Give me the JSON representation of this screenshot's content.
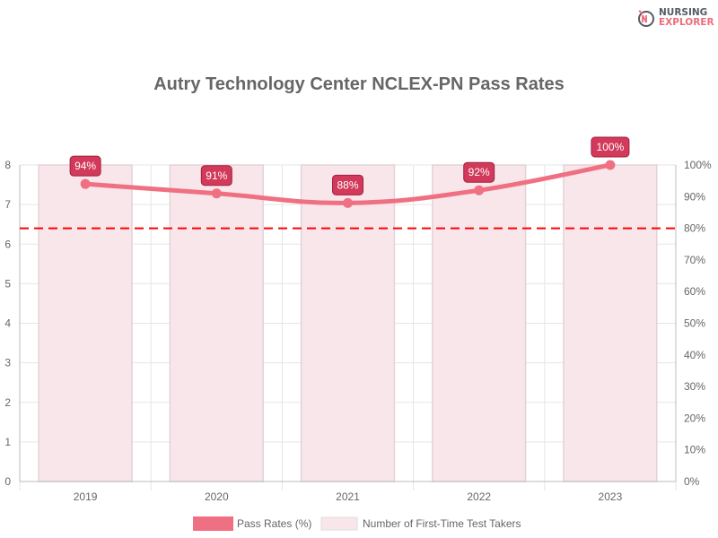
{
  "logo": {
    "line1": "NURSING",
    "line2": "EXPLORER",
    "mark": "NE"
  },
  "chart_data": {
    "type": "bar+line",
    "title": "Autry Technology Center NCLEX-PN Pass Rates",
    "categories": [
      "2019",
      "2020",
      "2021",
      "2022",
      "2023"
    ],
    "series": [
      {
        "name": "Pass Rates (%)",
        "type": "line",
        "axis": "right",
        "values": [
          94,
          91,
          88,
          92,
          100
        ],
        "labels": [
          "94%",
          "91%",
          "88%",
          "92%",
          "100%"
        ],
        "color": "#f07083"
      },
      {
        "name": "Number of First-Time Test Takers",
        "type": "bar",
        "axis": "left",
        "values": [
          8,
          8,
          8,
          8,
          8
        ],
        "color": "#f9e6ea"
      }
    ],
    "reference_line": {
      "value": 80,
      "axis": "right",
      "style": "dashed",
      "color": "#ff0000"
    },
    "left_axis": {
      "ylim": [
        0,
        8
      ],
      "ticks": [
        "0",
        "1",
        "2",
        "3",
        "4",
        "5",
        "6",
        "7",
        "8"
      ]
    },
    "right_axis": {
      "ylim": [
        0,
        100
      ],
      "ticks": [
        "0%",
        "10%",
        "20%",
        "30%",
        "40%",
        "50%",
        "60%",
        "70%",
        "80%",
        "90%",
        "100%"
      ]
    },
    "grid": true,
    "legend": "bottom"
  }
}
